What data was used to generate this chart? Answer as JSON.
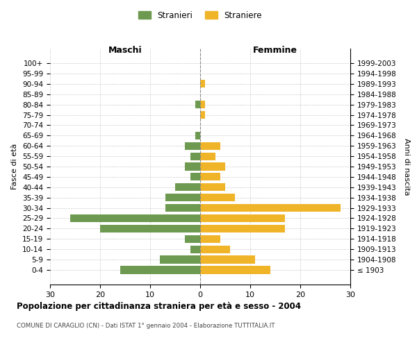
{
  "age_groups": [
    "100+",
    "95-99",
    "90-94",
    "85-89",
    "80-84",
    "75-79",
    "70-74",
    "65-69",
    "60-64",
    "55-59",
    "50-54",
    "45-49",
    "40-44",
    "35-39",
    "30-34",
    "25-29",
    "20-24",
    "15-19",
    "10-14",
    "5-9",
    "0-4"
  ],
  "birth_years": [
    "≤ 1903",
    "1904-1908",
    "1909-1913",
    "1914-1918",
    "1919-1923",
    "1924-1928",
    "1929-1933",
    "1934-1938",
    "1939-1943",
    "1944-1948",
    "1949-1953",
    "1954-1958",
    "1959-1963",
    "1964-1968",
    "1969-1973",
    "1974-1978",
    "1979-1983",
    "1984-1988",
    "1989-1993",
    "1994-1998",
    "1999-2003"
  ],
  "maschi": [
    0,
    0,
    0,
    0,
    1,
    0,
    0,
    1,
    3,
    2,
    3,
    2,
    5,
    7,
    7,
    26,
    20,
    3,
    2,
    8,
    16
  ],
  "femmine": [
    0,
    0,
    1,
    0,
    1,
    1,
    0,
    0,
    4,
    3,
    5,
    4,
    5,
    7,
    28,
    17,
    17,
    4,
    6,
    11,
    14
  ],
  "maschi_color": "#6d9a50",
  "femmine_color": "#f0b429",
  "grid_color": "#cccccc",
  "title": "Popolazione per cittadinanza straniera per età e sesso - 2004",
  "subtitle": "COMUNE DI CARAGLIO (CN) - Dati ISTAT 1° gennaio 2004 - Elaborazione TUTTITALIA.IT",
  "xlabel_left": "Maschi",
  "xlabel_right": "Femmine",
  "ylabel_left": "Fasce di età",
  "ylabel_right": "Anni di nascita",
  "legend_maschi": "Stranieri",
  "legend_femmine": "Straniere",
  "xlim": 30
}
